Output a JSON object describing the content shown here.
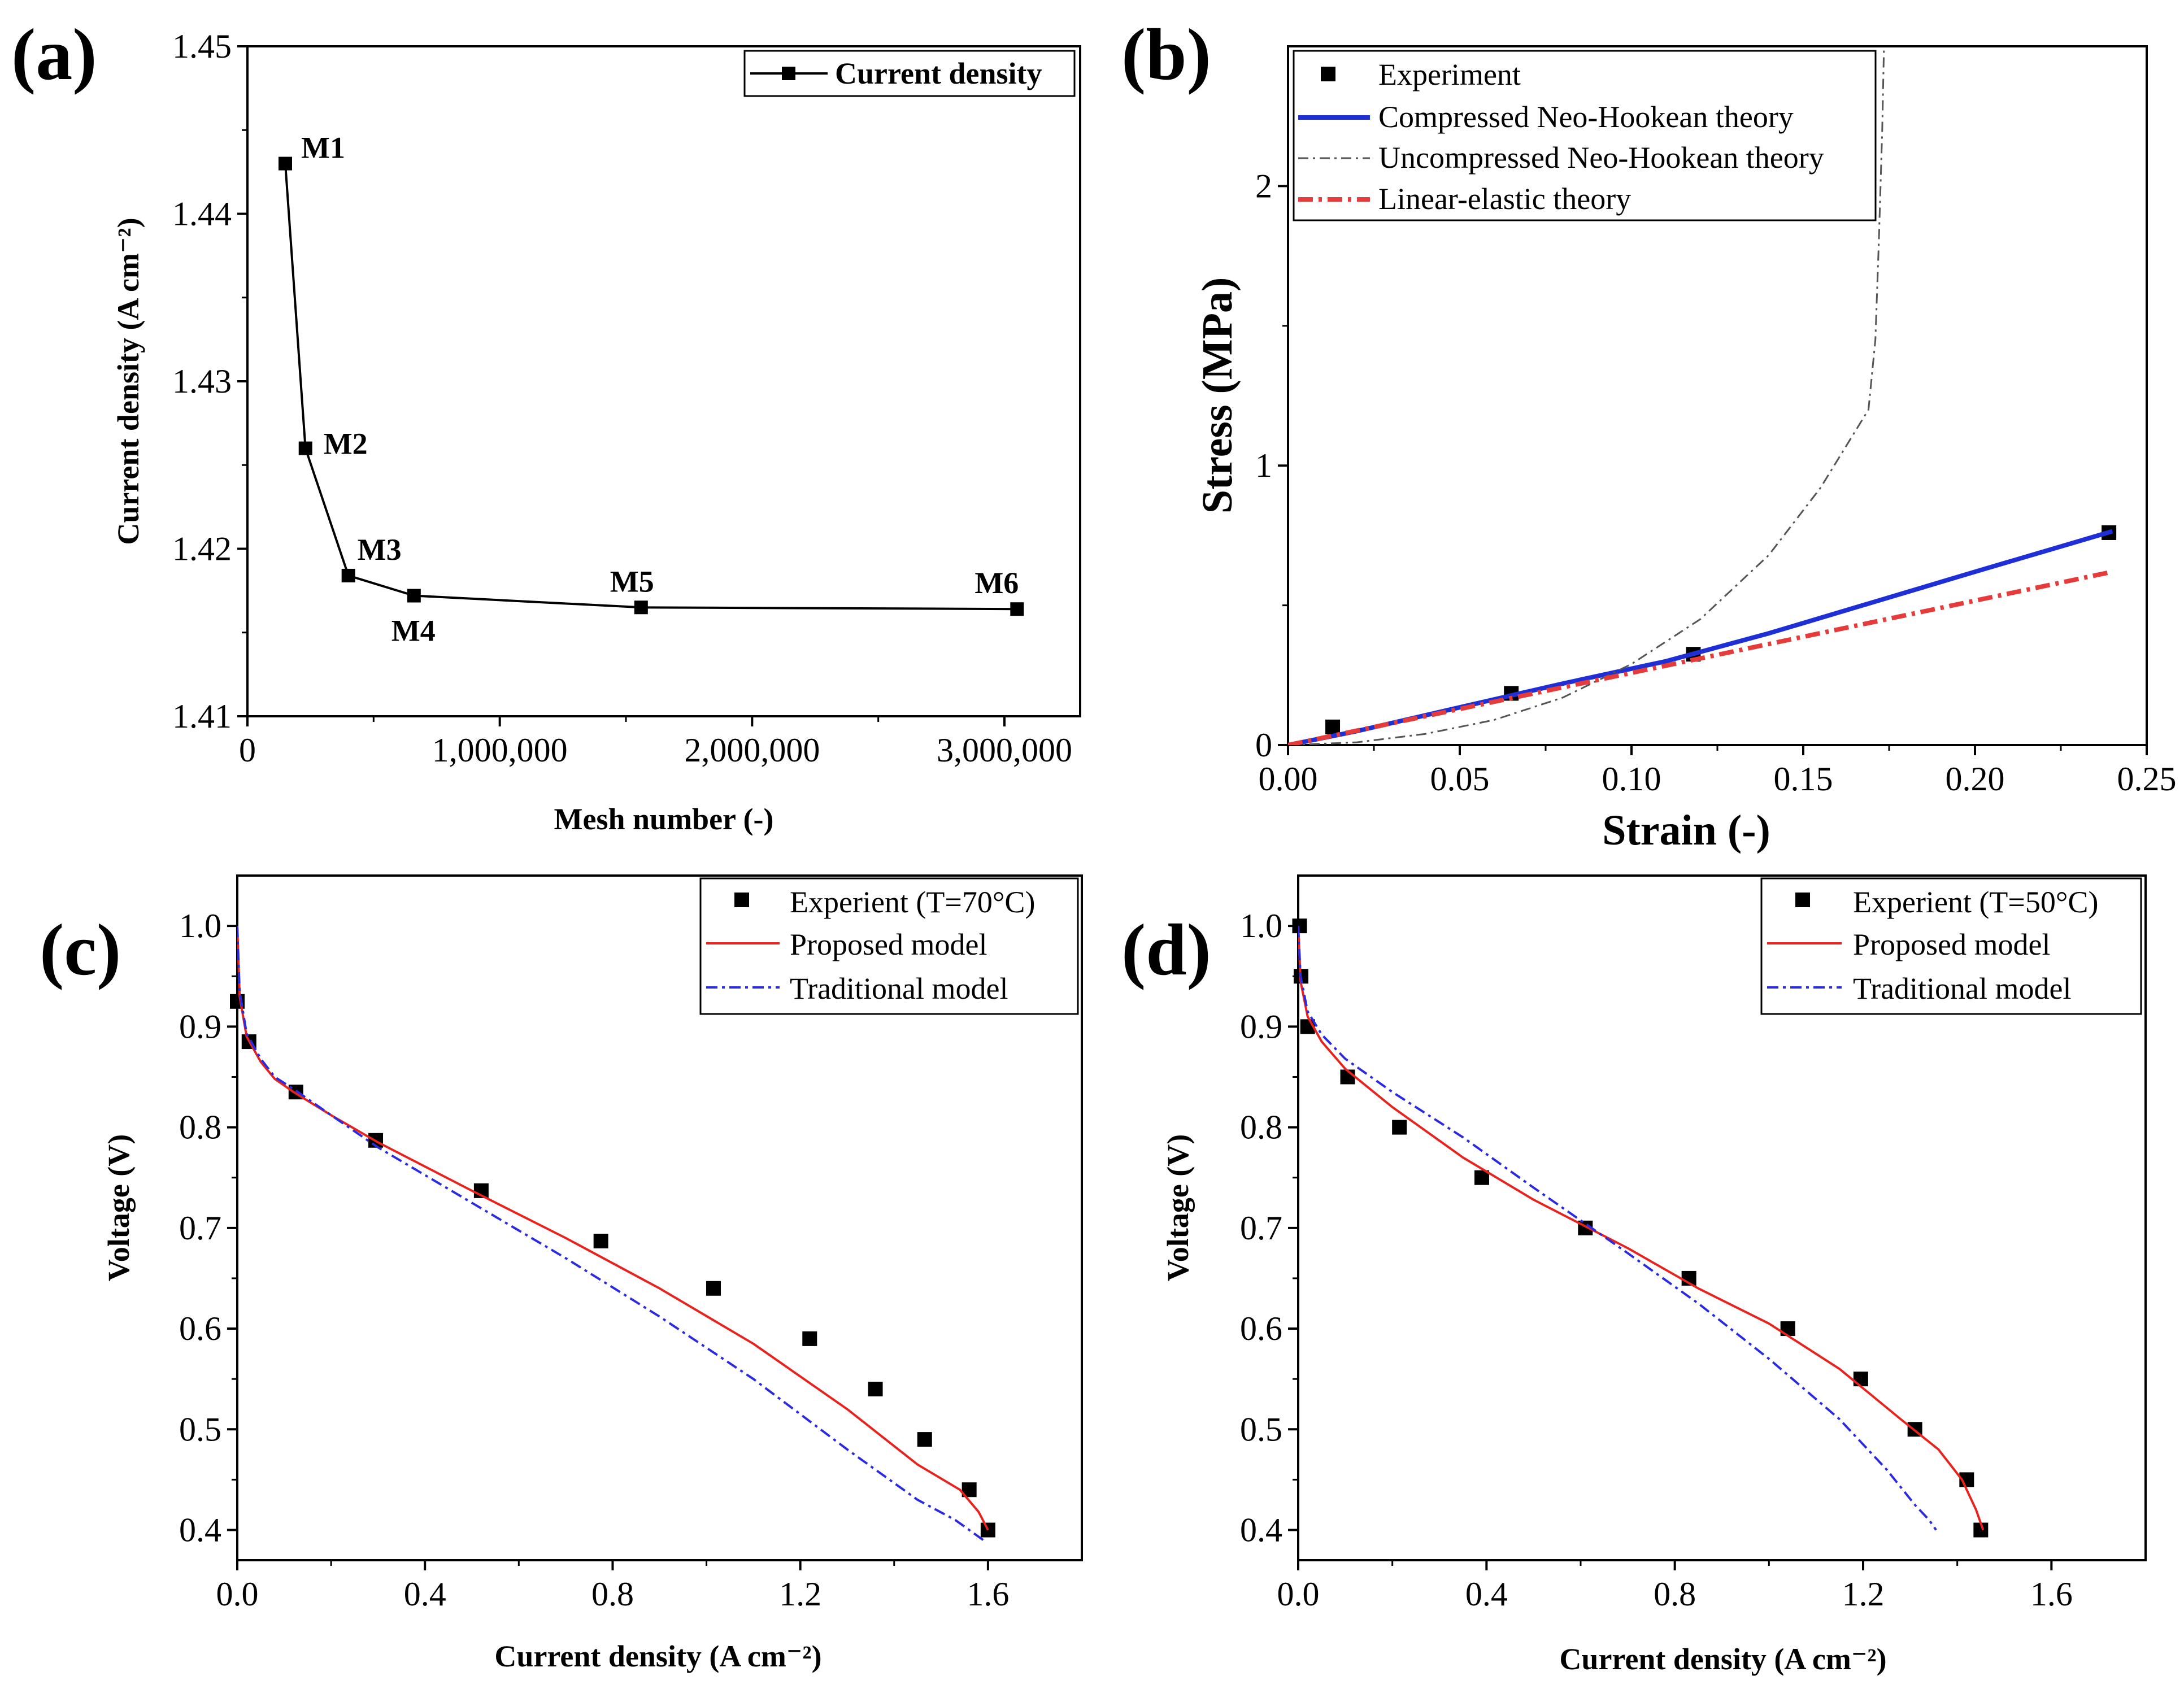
{
  "chart_data": [
    {
      "panel": "(a)",
      "type": "line",
      "xlabel": "Mesh number (-)",
      "ylabel": "Current density (A cm⁻²)",
      "xlim": [
        0,
        3300000
      ],
      "ylim": [
        1.41,
        1.45
      ],
      "xticks": [
        0,
        1000000,
        2000000,
        3000000
      ],
      "xtick_labels": [
        "0",
        "1,000,000",
        "2,000,000",
        "3,000,000"
      ],
      "yticks": [
        1.41,
        1.42,
        1.43,
        1.44,
        1.45
      ],
      "ytick_labels": [
        "1.41",
        "1.42",
        "1.43",
        "1.44",
        "1.45"
      ],
      "legend": [
        "Current density"
      ],
      "series": [
        {
          "name": "Current density",
          "color": "#000000",
          "labels": [
            "M1",
            "M2",
            "M3",
            "M4",
            "M5",
            "M6"
          ],
          "x": [
            150000,
            230000,
            400000,
            660000,
            1560000,
            3050000
          ],
          "y": [
            1.443,
            1.426,
            1.4184,
            1.4172,
            1.4165,
            1.4164
          ]
        }
      ]
    },
    {
      "panel": "(b)",
      "type": "line",
      "xlabel": "Strain (-)",
      "ylabel": "Stress (MPa)",
      "xlim": [
        0,
        0.25
      ],
      "ylim": [
        0,
        2.5
      ],
      "xticks": [
        0,
        0.05,
        0.1,
        0.15,
        0.2,
        0.25
      ],
      "xtick_labels": [
        "0.00",
        "0.05",
        "0.10",
        "0.15",
        "0.20",
        "0.25"
      ],
      "yticks": [
        0,
        1,
        2
      ],
      "ytick_labels": [
        "0",
        "1",
        "2"
      ],
      "legend": [
        "Experiment",
        "Compressed Neo-Hookean theory",
        "Uncompressed Neo-Hookean theory",
        "Linear-elastic theory"
      ],
      "series": [
        {
          "name": "Experiment",
          "style": "markers",
          "color": "#000000",
          "x": [
            0.013,
            0.065,
            0.118,
            0.239
          ],
          "y": [
            0.065,
            0.185,
            0.325,
            0.76
          ]
        },
        {
          "name": "Compressed Neo-Hookean theory",
          "style": "solid",
          "color": "#1f2fd6",
          "x": [
            0,
            0.02,
            0.05,
            0.08,
            0.11,
            0.14,
            0.17,
            0.2,
            0.24
          ],
          "y": [
            0,
            0.05,
            0.135,
            0.22,
            0.3,
            0.4,
            0.51,
            0.62,
            0.765
          ]
        },
        {
          "name": "Uncompressed Neo-Hookean theory",
          "style": "dashdot",
          "color": "#555555",
          "x": [
            0,
            0.02,
            0.04,
            0.06,
            0.08,
            0.1,
            0.12,
            0.14,
            0.155,
            0.169,
            0.171,
            0.172,
            0.173,
            0.1735
          ],
          "y": [
            0,
            0.01,
            0.04,
            0.09,
            0.17,
            0.29,
            0.45,
            0.68,
            0.92,
            1.2,
            1.45,
            1.8,
            2.2,
            2.5
          ]
        },
        {
          "name": "Linear-elastic theory",
          "style": "dashdot",
          "color": "#e53b3b",
          "x": [
            0,
            0.24
          ],
          "y": [
            0,
            0.62
          ]
        }
      ]
    },
    {
      "panel": "(c)",
      "type": "line",
      "xlabel": "Current density (A cm⁻²)",
      "ylabel": "Voltage (V)",
      "xlim": [
        0,
        1.8
      ],
      "ylim": [
        0.37,
        1.05
      ],
      "xticks": [
        0,
        0.4,
        0.8,
        1.2,
        1.6
      ],
      "xtick_labels": [
        "0.0",
        "0.4",
        "0.8",
        "1.2",
        "1.6"
      ],
      "yticks": [
        0.4,
        0.5,
        0.6,
        0.7,
        0.8,
        0.9,
        1.0
      ],
      "ytick_labels": [
        "0.4",
        "0.5",
        "0.6",
        "0.7",
        "0.8",
        "0.9",
        "1.0"
      ],
      "legend": [
        "Experient (T=70°C)",
        "Proposed model",
        "Traditional model"
      ],
      "series": [
        {
          "name": "Experient (T=70°C)",
          "style": "markers",
          "color": "#000000",
          "x": [
            0.0,
            0.025,
            0.125,
            0.295,
            0.52,
            0.775,
            1.015,
            1.22,
            1.36,
            1.465,
            1.56,
            1.6
          ],
          "y": [
            0.925,
            0.885,
            0.835,
            0.787,
            0.737,
            0.687,
            0.64,
            0.59,
            0.54,
            0.49,
            0.44,
            0.4
          ]
        },
        {
          "name": "Proposed model",
          "style": "solid",
          "color": "#e8231e",
          "x": [
            0,
            0.005,
            0.02,
            0.05,
            0.08,
            0.12,
            0.2,
            0.3,
            0.5,
            0.7,
            0.9,
            1.1,
            1.3,
            1.45,
            1.54,
            1.58,
            1.6
          ],
          "y": [
            1.0,
            0.93,
            0.89,
            0.865,
            0.848,
            0.835,
            0.812,
            0.785,
            0.737,
            0.69,
            0.64,
            0.585,
            0.52,
            0.465,
            0.44,
            0.418,
            0.4
          ]
        },
        {
          "name": "Traditional model",
          "style": "dashdot",
          "color": "#2a2ae0",
          "x": [
            0,
            0.005,
            0.02,
            0.05,
            0.08,
            0.12,
            0.2,
            0.3,
            0.5,
            0.7,
            0.9,
            1.1,
            1.3,
            1.45,
            1.53,
            1.59
          ],
          "y": [
            1.0,
            0.935,
            0.893,
            0.868,
            0.85,
            0.838,
            0.812,
            0.78,
            0.725,
            0.67,
            0.612,
            0.55,
            0.48,
            0.43,
            0.41,
            0.39
          ]
        }
      ]
    },
    {
      "panel": "(d)",
      "type": "line",
      "xlabel": "Current density (A cm⁻²)",
      "ylabel": "Voltage (V)",
      "xlim": [
        0,
        1.8
      ],
      "ylim": [
        0.37,
        1.05
      ],
      "xticks": [
        0,
        0.4,
        0.8,
        1.2,
        1.6
      ],
      "xtick_labels": [
        "0.0",
        "0.4",
        "0.8",
        "1.2",
        "1.6"
      ],
      "yticks": [
        0.4,
        0.5,
        0.6,
        0.7,
        0.8,
        0.9,
        1.0
      ],
      "ytick_labels": [
        "0.4",
        "0.5",
        "0.6",
        "0.7",
        "0.8",
        "0.9",
        "1.0"
      ],
      "legend": [
        "Experient (T=50°C)",
        "Proposed model",
        "Traditional model"
      ],
      "series": [
        {
          "name": "Experient (T=50°C)",
          "style": "markers",
          "color": "#000000",
          "x": [
            0.003,
            0.006,
            0.02,
            0.105,
            0.215,
            0.39,
            0.61,
            0.83,
            1.04,
            1.195,
            1.31,
            1.42,
            1.45
          ],
          "y": [
            1.0,
            0.95,
            0.9,
            0.85,
            0.8,
            0.75,
            0.7,
            0.65,
            0.6,
            0.55,
            0.5,
            0.45,
            0.4
          ]
        },
        {
          "name": "Proposed model",
          "style": "solid",
          "color": "#e8231e",
          "x": [
            0,
            0.005,
            0.02,
            0.05,
            0.1,
            0.2,
            0.35,
            0.5,
            0.7,
            0.85,
            1.0,
            1.15,
            1.28,
            1.36,
            1.41,
            1.44,
            1.455
          ],
          "y": [
            1.0,
            0.945,
            0.91,
            0.885,
            0.858,
            0.82,
            0.77,
            0.728,
            0.68,
            0.64,
            0.605,
            0.56,
            0.51,
            0.48,
            0.45,
            0.42,
            0.4
          ]
        },
        {
          "name": "Traditional model",
          "style": "dashdot",
          "color": "#2a2ae0",
          "x": [
            0,
            0.005,
            0.02,
            0.05,
            0.1,
            0.2,
            0.35,
            0.5,
            0.7,
            0.85,
            1.0,
            1.15,
            1.25,
            1.31,
            1.34,
            1.355
          ],
          "y": [
            1.0,
            0.95,
            0.915,
            0.892,
            0.868,
            0.835,
            0.79,
            0.74,
            0.675,
            0.625,
            0.57,
            0.51,
            0.46,
            0.425,
            0.41,
            0.4
          ]
        }
      ]
    }
  ]
}
